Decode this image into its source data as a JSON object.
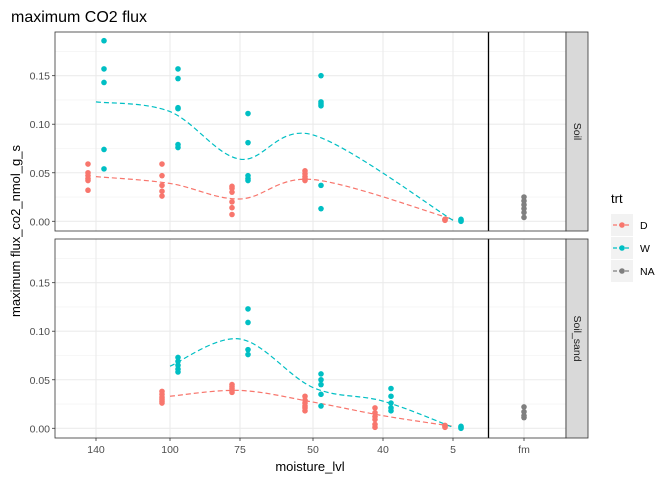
{
  "chart_data": {
    "type": "scatter",
    "title": "maximum CO2 flux",
    "xlabel": "moisture_lvl",
    "ylabel": "maximum flux_co2_nmol_g_s",
    "categories": [
      "140",
      "100",
      "75",
      "50",
      "40",
      "5",
      "fm"
    ],
    "yticks": [
      "0.00",
      "0.05",
      "0.10",
      "0.15"
    ],
    "ylim": [
      -0.01,
      0.195
    ],
    "grid": true,
    "facets": [
      "Soil",
      "Soil_sand"
    ],
    "legend": {
      "title": "trt",
      "position": "right",
      "items": [
        {
          "label": "D",
          "color": "#F8766D"
        },
        {
          "label": "W",
          "color": "#00BFC4"
        },
        {
          "label": "NA",
          "color": "#7F7F7F"
        }
      ]
    },
    "panels": [
      {
        "facet": "Soil",
        "points": [
          {
            "trt": "D",
            "x": "140",
            "y": [
              0.059,
              0.05,
              0.047,
              0.044,
              0.042,
              0.032
            ]
          },
          {
            "trt": "W",
            "x": "140",
            "y": [
              0.186,
              0.157,
              0.143,
              0.074,
              0.054
            ]
          },
          {
            "trt": "D",
            "x": "100",
            "y": [
              0.059,
              0.047,
              0.037,
              0.031,
              0.026
            ]
          },
          {
            "trt": "W",
            "x": "100",
            "y": [
              0.157,
              0.147,
              0.117,
              0.116,
              0.079,
              0.076
            ]
          },
          {
            "trt": "D",
            "x": "75",
            "y": [
              0.036,
              0.034,
              0.03,
              0.02,
              0.014,
              0.007
            ]
          },
          {
            "trt": "W",
            "x": "75",
            "y": [
              0.111,
              0.081,
              0.047,
              0.044,
              0.042
            ]
          },
          {
            "trt": "D",
            "x": "50",
            "y": [
              0.052,
              0.049,
              0.046,
              0.044,
              0.042
            ]
          },
          {
            "trt": "W",
            "x": "50",
            "y": [
              0.15,
              0.123,
              0.121,
              0.119,
              0.037,
              0.013
            ]
          },
          {
            "trt": "D",
            "x": "5",
            "y": [
              0.002,
              0.002,
              0.001
            ]
          },
          {
            "trt": "W",
            "x": "5",
            "y": [
              0.002,
              0.001,
              0.0
            ]
          },
          {
            "trt": "NA",
            "x": "fm",
            "y": [
              0.025,
              0.021,
              0.017,
              0.013,
              0.009,
              0.004
            ]
          }
        ],
        "trends": [
          {
            "trt": "D",
            "x": [
              "140",
              "100",
              "75",
              "50",
              "5"
            ],
            "y": [
              0.046,
              0.039,
              0.023,
              0.043,
              0.002
            ]
          },
          {
            "trt": "W",
            "x": [
              "140",
              "100",
              "75",
              "50",
              "5"
            ],
            "y": [
              0.123,
              0.113,
              0.064,
              0.089,
              0.001
            ]
          }
        ]
      },
      {
        "facet": "Soil_sand",
        "points": [
          {
            "trt": "D",
            "x": "100",
            "y": [
              0.038,
              0.035,
              0.032,
              0.03,
              0.028,
              0.026
            ]
          },
          {
            "trt": "W",
            "x": "100",
            "y": [
              0.073,
              0.069,
              0.065,
              0.061,
              0.058
            ]
          },
          {
            "trt": "D",
            "x": "75",
            "y": [
              0.045,
              0.043,
              0.041,
              0.039,
              0.037
            ]
          },
          {
            "trt": "W",
            "x": "75",
            "y": [
              0.123,
              0.109,
              0.081,
              0.076
            ]
          },
          {
            "trt": "D",
            "x": "50",
            "y": [
              0.033,
              0.029,
              0.026,
              0.023,
              0.021,
              0.018
            ]
          },
          {
            "trt": "W",
            "x": "50",
            "y": [
              0.056,
              0.05,
              0.045,
              0.035,
              0.023
            ]
          },
          {
            "trt": "D",
            "x": "40",
            "y": [
              0.021,
              0.016,
              0.012,
              0.009,
              0.004,
              0.001
            ]
          },
          {
            "trt": "W",
            "x": "40",
            "y": [
              0.041,
              0.033,
              0.026,
              0.021,
              0.018
            ]
          },
          {
            "trt": "D",
            "x": "5",
            "y": [
              0.003,
              0.002,
              0.001
            ]
          },
          {
            "trt": "W",
            "x": "5",
            "y": [
              0.002,
              0.001,
              0.0
            ]
          },
          {
            "trt": "NA",
            "x": "fm",
            "y": [
              0.022,
              0.017,
              0.013,
              0.011
            ]
          }
        ],
        "trends": [
          {
            "trt": "D",
            "x": [
              "100",
              "75",
              "50",
              "40",
              "5"
            ],
            "y": [
              0.033,
              0.039,
              0.027,
              0.013,
              0.002
            ]
          },
          {
            "trt": "W",
            "x": [
              "100",
              "75",
              "50",
              "40",
              "5"
            ],
            "y": [
              0.064,
              0.092,
              0.042,
              0.028,
              0.001
            ]
          }
        ]
      }
    ]
  }
}
